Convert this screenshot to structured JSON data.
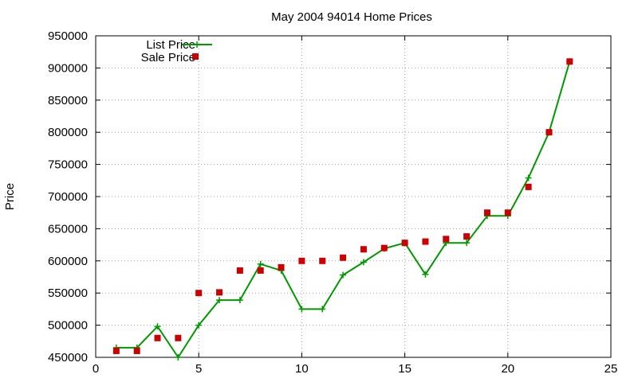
{
  "chart_data": {
    "type": "line",
    "title": "May 2004 94014 Home Prices",
    "xlabel": "",
    "ylabel": "Price",
    "xlim": [
      0,
      25
    ],
    "ylim": [
      450000,
      950000
    ],
    "xticks": [
      0,
      5,
      10,
      15,
      20,
      25
    ],
    "yticks": [
      450000,
      500000,
      550000,
      600000,
      650000,
      700000,
      750000,
      800000,
      850000,
      900000,
      950000
    ],
    "grid": true,
    "legend_position": "top-left",
    "series": [
      {
        "name": "List Price",
        "style": "line-with-plus-markers",
        "color": "#009900",
        "x": [
          1,
          2,
          3,
          4,
          5,
          6,
          7,
          8,
          9,
          10,
          11,
          12,
          13,
          14,
          15,
          16,
          17,
          18,
          19,
          20,
          21,
          22,
          23
        ],
        "y": [
          465000,
          465000,
          498000,
          450000,
          500000,
          539000,
          539000,
          595000,
          585000,
          525000,
          525000,
          578000,
          598000,
          619000,
          628000,
          579000,
          628000,
          628000,
          670000,
          670000,
          729000,
          800000,
          910000
        ]
      },
      {
        "name": "Sale Price",
        "style": "square-markers",
        "color": "#cc0000",
        "x": [
          1,
          2,
          3,
          4,
          5,
          6,
          7,
          8,
          9,
          10,
          11,
          12,
          13,
          14,
          15,
          16,
          17,
          18,
          19,
          20,
          21,
          22,
          23
        ],
        "y": [
          460000,
          460000,
          480000,
          480000,
          550000,
          551000,
          585000,
          585000,
          590000,
          600000,
          600000,
          605000,
          618000,
          620000,
          628000,
          630000,
          634000,
          638000,
          675000,
          675000,
          715000,
          800000,
          910000
        ]
      }
    ]
  }
}
